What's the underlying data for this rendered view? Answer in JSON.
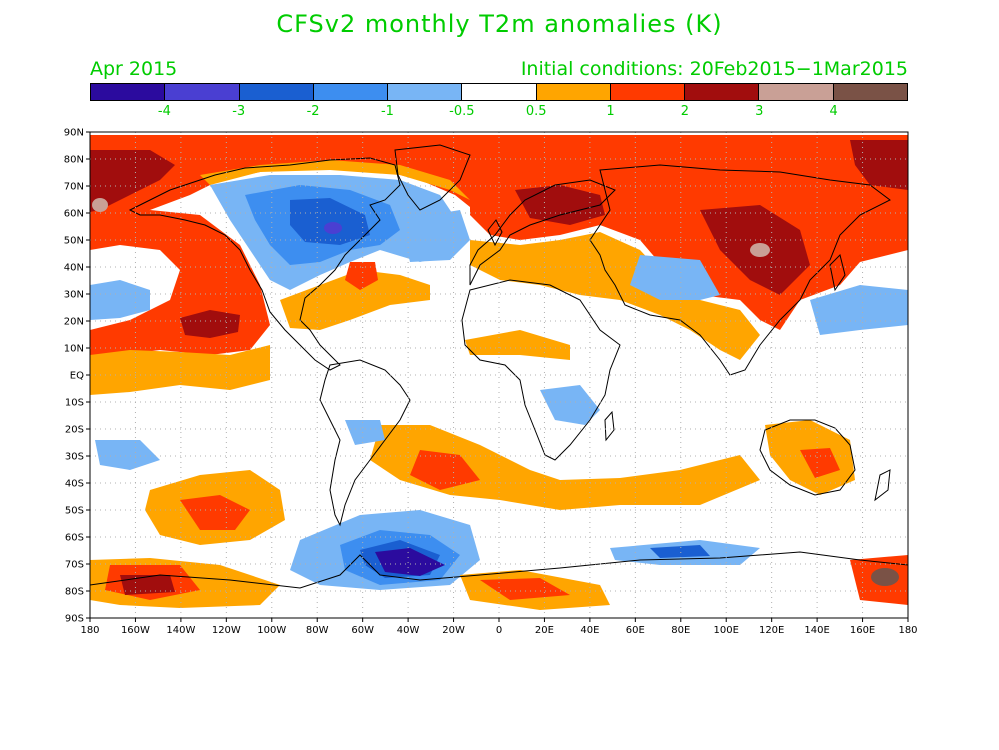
{
  "title": "CFSv2 monthly T2m anomalies (K)",
  "date_label": "Apr 2015",
  "initial_conditions": "Initial conditions: 20Feb2015−1Mar2015",
  "colors": {
    "label_green": "#00cc00",
    "ocean_land_neutral": "#ffffff",
    "coastline": "#000000",
    "gridline": "#b0b0b0"
  },
  "colorbar": {
    "bins": [
      {
        "color": "#2b0b9e"
      },
      {
        "color": "#4a3fd2"
      },
      {
        "color": "#1a5fd1"
      },
      {
        "color": "#3d8ef0"
      },
      {
        "color": "#78b5f5"
      },
      {
        "color": "#ffffff"
      },
      {
        "color": "#ffa500"
      },
      {
        "color": "#ff3a00"
      },
      {
        "color": "#a10d0d"
      },
      {
        "color": "#c9a096"
      },
      {
        "color": "#7a5246"
      }
    ],
    "labels": [
      {
        "text": "-4",
        "boundary": 1
      },
      {
        "text": "-3",
        "boundary": 2
      },
      {
        "text": "-2",
        "boundary": 3
      },
      {
        "text": "-1",
        "boundary": 4
      },
      {
        "text": "-0.5",
        "boundary": 5
      },
      {
        "text": "0.5",
        "boundary": 6
      },
      {
        "text": "1",
        "boundary": 7
      },
      {
        "text": "2",
        "boundary": 8
      },
      {
        "text": "3",
        "boundary": 9
      },
      {
        "text": "4",
        "boundary": 10
      }
    ]
  },
  "map": {
    "lat_labels": [
      "90N",
      "80N",
      "70N",
      "60N",
      "50N",
      "40N",
      "30N",
      "20N",
      "10N",
      "EQ",
      "10S",
      "20S",
      "30S",
      "40S",
      "50S",
      "60S",
      "70S",
      "80S",
      "90S"
    ],
    "lon_labels": [
      "180",
      "160W",
      "140W",
      "120W",
      "100W",
      "80W",
      "60W",
      "40W",
      "20W",
      "0",
      "20E",
      "40E",
      "60E",
      "80E",
      "100E",
      "120E",
      "140E",
      "160E",
      "180"
    ]
  }
}
